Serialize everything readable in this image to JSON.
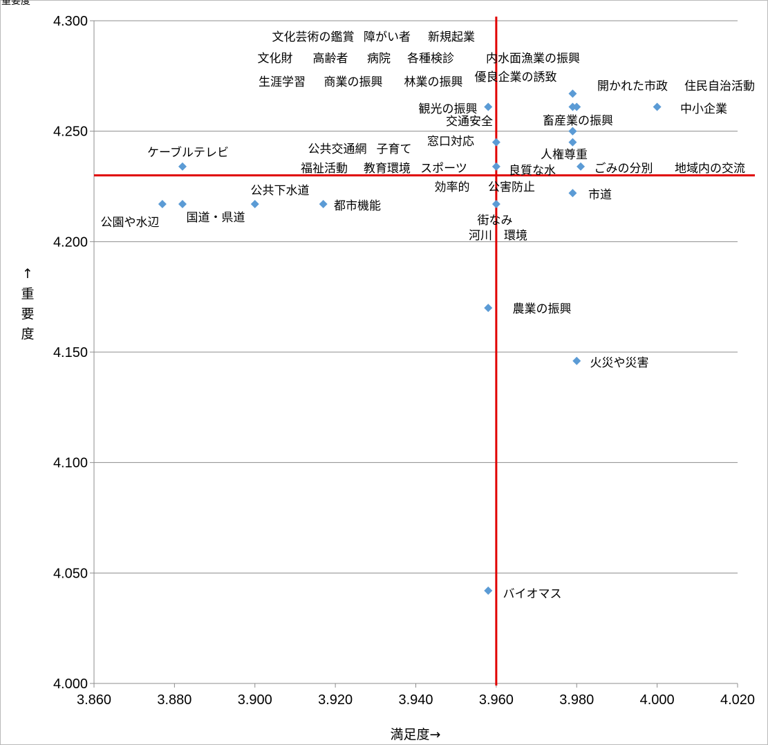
{
  "chart_data": {
    "type": "scatter",
    "title": "",
    "corner_label": "重要度",
    "xlabel": "満足度→",
    "ylabel": "↑重要度",
    "xlim": [
      3.86,
      4.02
    ],
    "ylim": [
      4.0,
      4.3
    ],
    "x_ticks": [
      "3.860",
      "3.880",
      "3.900",
      "3.920",
      "3.940",
      "3.960",
      "3.980",
      "4.000",
      "4.020"
    ],
    "y_ticks": [
      "4.000",
      "4.050",
      "4.100",
      "4.150",
      "4.200",
      "4.250",
      "4.300"
    ],
    "grid": "horizontal",
    "marker_color": "#5b9bd5",
    "reference_line_color": "#e00000",
    "reference_lines": {
      "x": 3.96,
      "y": 4.23
    },
    "points": [
      {
        "x": 3.877,
        "y": 4.217,
        "label": "公園や水辺"
      },
      {
        "x": 3.882,
        "y": 4.217,
        "label": "国道・県道"
      },
      {
        "x": 3.882,
        "y": 4.234,
        "label": "ケーブルテレビ"
      },
      {
        "x": 3.9,
        "y": 4.217,
        "label": "公共下水道"
      },
      {
        "x": 3.917,
        "y": 4.217,
        "label": "都市機能"
      },
      {
        "x": 3.958,
        "y": 4.261,
        "label": "観光の振興"
      },
      {
        "x": 3.96,
        "y": 4.245,
        "label": "窓口対応"
      },
      {
        "x": 3.96,
        "y": 4.234,
        "label": "良質な水"
      },
      {
        "x": 3.96,
        "y": 4.217,
        "label": "街なみ"
      },
      {
        "x": 3.958,
        "y": 4.17,
        "label": "農業の振興"
      },
      {
        "x": 3.958,
        "y": 4.042,
        "label": "バイオマス"
      },
      {
        "x": 3.979,
        "y": 4.267,
        "label": "開かれた市政"
      },
      {
        "x": 3.98,
        "y": 4.261,
        "label": "住民自治活動"
      },
      {
        "x": 3.979,
        "y": 4.261,
        "label": ""
      },
      {
        "x": 3.979,
        "y": 4.25,
        "label": "畜産業の振興"
      },
      {
        "x": 3.979,
        "y": 4.25,
        "label": ""
      },
      {
        "x": 3.979,
        "y": 4.245,
        "label": "人権尊重"
      },
      {
        "x": 3.981,
        "y": 4.234,
        "label": "ごみの分別"
      },
      {
        "x": 3.979,
        "y": 4.222,
        "label": "市道"
      },
      {
        "x": 3.98,
        "y": 4.146,
        "label": "火災や災害"
      },
      {
        "x": 4.0,
        "y": 4.261,
        "label": "中小企業"
      }
    ],
    "annotations": [
      "文化芸術の鑑賞",
      "障がい者",
      "新規起業",
      "文化財",
      "高齢者",
      "病院",
      "各種検診",
      "内水面漁業の振興",
      "生涯学習",
      "商業の振興",
      "林業の振興",
      "優良企業の誘致",
      "交通安全",
      "公共交通網",
      "子育て",
      "福祉活動",
      "教育環境",
      "スポーツ",
      "効率的",
      "公害防止",
      "河川",
      "環境",
      "地域内の交流"
    ]
  }
}
